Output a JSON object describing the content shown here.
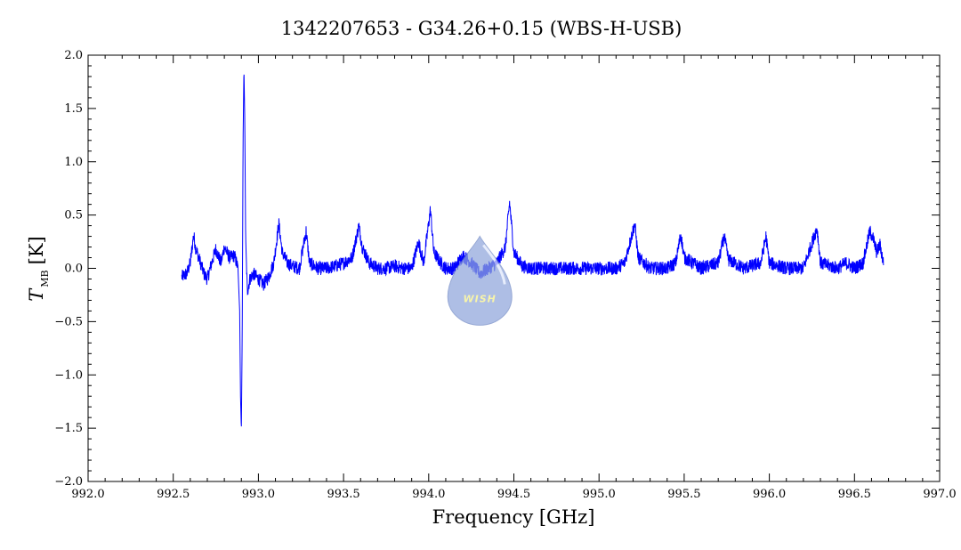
{
  "chart_data": {
    "type": "line",
    "title": "1342207653 - G34.26+0.15 (WBS-H-USB)",
    "xlabel": "Frequency [GHz]",
    "ylabel_main": "T",
    "ylabel_sub": "MB",
    "ylabel_unit": "[K]",
    "xlim": [
      992.0,
      997.0
    ],
    "ylim": [
      -2.0,
      2.0
    ],
    "x_ticks": [
      "992.0",
      "992.5",
      "993.0",
      "993.5",
      "994.0",
      "994.5",
      "995.0",
      "995.5",
      "996.0",
      "996.5",
      "997.0"
    ],
    "y_ticks": [
      "-2.0",
      "-1.5",
      "-1.0",
      "-0.5",
      "0.0",
      "0.5",
      "1.0",
      "1.5",
      "2.0"
    ],
    "grid": false,
    "series": [
      {
        "color": "#0000ff",
        "x_range": [
          992.55,
          996.67
        ],
        "baseline": 0.0,
        "noise": 0.04,
        "points": [
          [
            992.55,
            -0.08
          ],
          [
            992.58,
            -0.05
          ],
          [
            992.6,
            0.05
          ],
          [
            992.62,
            0.32
          ],
          [
            992.63,
            0.2
          ],
          [
            992.65,
            0.1
          ],
          [
            992.68,
            -0.05
          ],
          [
            992.7,
            -0.1
          ],
          [
            992.72,
            0.02
          ],
          [
            992.75,
            0.18
          ],
          [
            992.78,
            0.05
          ],
          [
            992.8,
            0.2
          ],
          [
            992.83,
            0.1
          ],
          [
            992.86,
            0.12
          ],
          [
            992.88,
            0.0
          ],
          [
            992.89,
            -0.4
          ],
          [
            992.895,
            -1.2
          ],
          [
            992.9,
            -1.52
          ],
          [
            992.905,
            -0.6
          ],
          [
            992.91,
            1.2
          ],
          [
            992.915,
            1.88
          ],
          [
            992.92,
            1.4
          ],
          [
            992.925,
            0.3
          ],
          [
            992.935,
            -0.22
          ],
          [
            992.95,
            -0.1
          ],
          [
            992.97,
            -0.05
          ],
          [
            993.0,
            -0.1
          ],
          [
            993.03,
            -0.15
          ],
          [
            993.06,
            -0.08
          ],
          [
            993.09,
            0.05
          ],
          [
            993.12,
            0.42
          ],
          [
            993.14,
            0.15
          ],
          [
            993.17,
            0.05
          ],
          [
            993.2,
            0.02
          ],
          [
            993.24,
            0.0
          ],
          [
            993.28,
            0.35
          ],
          [
            993.3,
            0.05
          ],
          [
            993.35,
            0.0
          ],
          [
            993.4,
            0.0
          ],
          [
            993.45,
            0.02
          ],
          [
            993.5,
            0.05
          ],
          [
            993.55,
            0.1
          ],
          [
            993.59,
            0.4
          ],
          [
            993.61,
            0.2
          ],
          [
            993.65,
            0.05
          ],
          [
            993.7,
            0.0
          ],
          [
            993.75,
            0.0
          ],
          [
            993.8,
            0.02
          ],
          [
            993.85,
            0.0
          ],
          [
            993.9,
            0.0
          ],
          [
            993.94,
            0.25
          ],
          [
            993.97,
            0.05
          ],
          [
            994.01,
            0.55
          ],
          [
            994.03,
            0.15
          ],
          [
            994.07,
            0.05
          ],
          [
            994.1,
            0.0
          ],
          [
            994.15,
            0.0
          ],
          [
            994.2,
            0.12
          ],
          [
            994.25,
            0.05
          ],
          [
            994.3,
            -0.05
          ],
          [
            994.35,
            0.0
          ],
          [
            994.4,
            0.05
          ],
          [
            994.45,
            0.2
          ],
          [
            994.475,
            0.62
          ],
          [
            994.5,
            0.15
          ],
          [
            994.55,
            0.02
          ],
          [
            994.6,
            0.0
          ],
          [
            994.7,
            0.0
          ],
          [
            994.8,
            0.0
          ],
          [
            994.9,
            0.0
          ],
          [
            995.0,
            0.0
          ],
          [
            995.1,
            0.0
          ],
          [
            995.15,
            0.05
          ],
          [
            995.21,
            0.42
          ],
          [
            995.23,
            0.1
          ],
          [
            995.3,
            0.0
          ],
          [
            995.4,
            0.0
          ],
          [
            995.45,
            0.05
          ],
          [
            995.48,
            0.32
          ],
          [
            995.5,
            0.1
          ],
          [
            995.6,
            0.0
          ],
          [
            995.7,
            0.05
          ],
          [
            995.735,
            0.3
          ],
          [
            995.76,
            0.08
          ],
          [
            995.85,
            0.0
          ],
          [
            995.95,
            0.05
          ],
          [
            995.98,
            0.3
          ],
          [
            996.0,
            0.05
          ],
          [
            996.1,
            0.0
          ],
          [
            996.2,
            0.0
          ],
          [
            996.28,
            0.38
          ],
          [
            996.3,
            0.05
          ],
          [
            996.4,
            0.0
          ],
          [
            996.45,
            0.05
          ],
          [
            996.5,
            0.0
          ],
          [
            996.55,
            0.05
          ],
          [
            996.59,
            0.35
          ],
          [
            996.61,
            0.28
          ],
          [
            996.63,
            0.15
          ],
          [
            996.65,
            0.22
          ],
          [
            996.67,
            0.05
          ]
        ]
      }
    ],
    "watermark": {
      "text": "WISH",
      "shape": "droplet",
      "colors": {
        "fill": "#8fa6dc",
        "highlight": "#dfe7fb",
        "text": "#f4f08a"
      },
      "center_x": 994.3,
      "center_y": -0.2
    }
  }
}
